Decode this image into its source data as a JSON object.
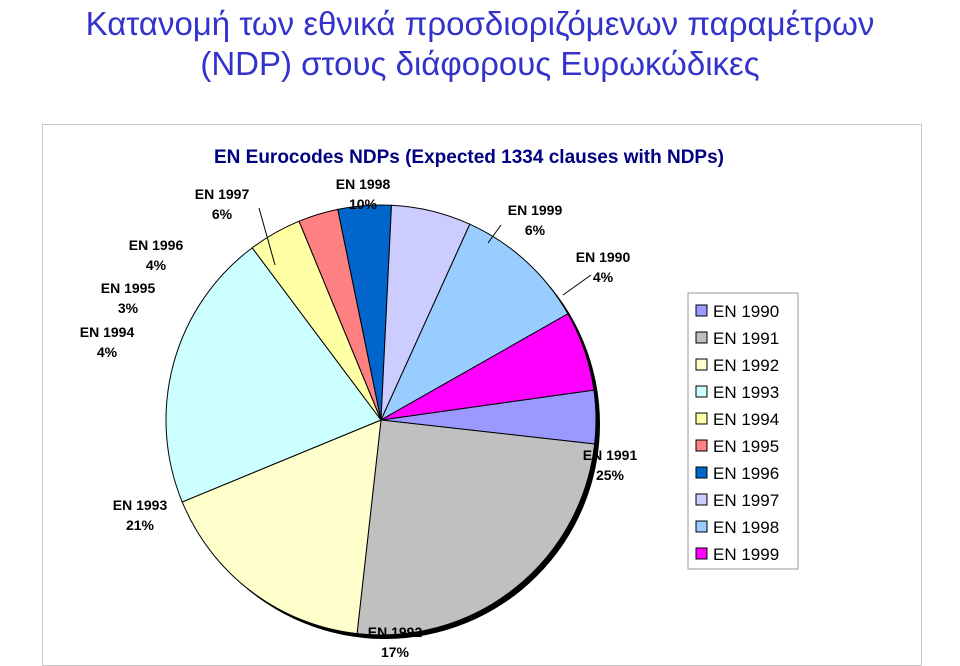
{
  "slide": {
    "title_line1": "Κατανομή των εθνικά προσδιοριζόμενων παραμέτρων",
    "title_line2": "(NDP) στους διάφορους Ευρωκώδικες"
  },
  "chart_data": {
    "type": "pie",
    "title": "EN Eurocodes NDPs (Expected 1334 clauses with NDPs)",
    "legend_position": "right",
    "slices": [
      {
        "label": "EN 1990",
        "pct_label": "4%",
        "value": 4,
        "color": "#9999ff"
      },
      {
        "label": "EN 1991",
        "pct_label": "25%",
        "value": 25,
        "color": "#c0c0c0"
      },
      {
        "label": "EN 1992",
        "pct_label": "17%",
        "value": 17,
        "color": "#ffffcc"
      },
      {
        "label": "EN 1993",
        "pct_label": "21%",
        "value": 21,
        "color": "#ccffff"
      },
      {
        "label": "EN 1994",
        "pct_label": "4%",
        "value": 4,
        "color": "#ffffa6"
      },
      {
        "label": "EN 1995",
        "pct_label": "3%",
        "value": 3,
        "color": "#ff8080"
      },
      {
        "label": "EN 1996",
        "pct_label": "4%",
        "value": 4,
        "color": "#0066cc"
      },
      {
        "label": "EN 1997",
        "pct_label": "6%",
        "value": 6,
        "color": "#ccccff"
      },
      {
        "label": "EN 1998",
        "pct_label": "10%",
        "value": 10,
        "color": "#99ccff"
      },
      {
        "label": "EN 1999",
        "pct_label": "6%",
        "value": 6,
        "color": "#ff00ff"
      }
    ]
  }
}
